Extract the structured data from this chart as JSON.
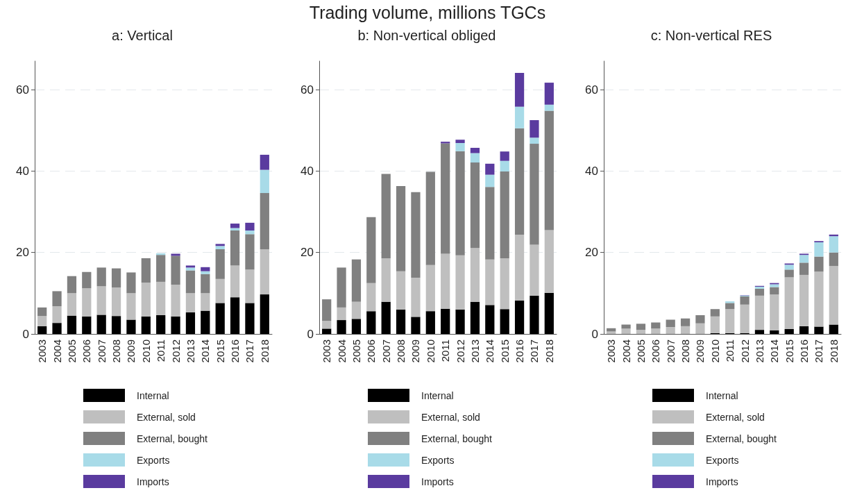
{
  "chart_data": [
    {
      "type": "bar",
      "title": "a: Vertical",
      "annotations": [
        "Trading volume, millions TGCs"
      ],
      "stacked": true,
      "grid": "y",
      "legend": "bottom",
      "ylim": [
        0,
        67
      ],
      "yticks": [
        0,
        20,
        40,
        60
      ],
      "categories": [
        "2003",
        "2004",
        "2005",
        "2006",
        "2007",
        "2008",
        "2009",
        "2010",
        "2011",
        "2012",
        "2013",
        "2014",
        "2015",
        "2016",
        "2017",
        "2018"
      ],
      "series": [
        {
          "name": "Internal",
          "color": "#000000",
          "values": [
            1.9,
            2.7,
            4.5,
            4.3,
            4.7,
            4.4,
            3.5,
            4.3,
            4.6,
            4.3,
            5.3,
            5.7,
            7.6,
            9.0,
            7.6,
            9.7
          ]
        },
        {
          "name": "External, sold",
          "color": "#bfbfbf",
          "values": [
            2.5,
            4.1,
            5.5,
            6.9,
            7.0,
            7.0,
            6.5,
            8.3,
            8.2,
            7.8,
            4.7,
            4.3,
            5.9,
            7.8,
            8.2,
            11.1
          ]
        },
        {
          "name": "External, bought",
          "color": "#808080",
          "values": [
            2.1,
            3.7,
            4.2,
            4.0,
            4.6,
            4.7,
            5.1,
            6.0,
            6.6,
            7.1,
            5.6,
            4.7,
            7.3,
            8.6,
            8.7,
            13.8
          ]
        },
        {
          "name": "Exports",
          "color": "#a8dbe8",
          "values": [
            0,
            0,
            0,
            0,
            0,
            0,
            0,
            0,
            0.4,
            null,
            0.7,
            0.7,
            0.8,
            0.6,
            0.9,
            5.7
          ]
        },
        {
          "name": "Imports",
          "color": "#5a3b9f",
          "values": [
            0,
            0,
            0,
            0,
            0,
            0,
            0,
            0,
            0,
            0.5,
            0.5,
            1.0,
            0.5,
            1.1,
            1.9,
            3.7
          ]
        }
      ]
    },
    {
      "type": "bar",
      "title": "b: Non-vertical obliged",
      "stacked": true,
      "grid": "y",
      "legend": "bottom",
      "ylim": [
        0,
        67
      ],
      "yticks": [
        0,
        20,
        40,
        60
      ],
      "categories": [
        "2003",
        "2004",
        "2005",
        "2006",
        "2007",
        "2008",
        "2009",
        "2010",
        "2011",
        "2012",
        "2013",
        "2014",
        "2015",
        "2016",
        "2017",
        "2018"
      ],
      "series": [
        {
          "name": "Internal",
          "color": "#000000",
          "values": [
            1.3,
            3.4,
            3.7,
            5.6,
            7.9,
            6.0,
            4.2,
            5.6,
            6.2,
            6.0,
            7.9,
            7.1,
            6.1,
            8.2,
            9.4,
            10.1
          ]
        },
        {
          "name": "External, sold",
          "color": "#bfbfbf",
          "values": [
            1.9,
            3.1,
            4.2,
            6.9,
            10.7,
            9.4,
            9.6,
            11.3,
            13.5,
            13.3,
            13.2,
            11.2,
            12.5,
            16.2,
            12.5,
            15.4
          ]
        },
        {
          "name": "External, bought",
          "color": "#808080",
          "values": [
            5.3,
            9.8,
            10.4,
            16.2,
            20.7,
            20.9,
            21.0,
            22.9,
            27.1,
            25.6,
            21.0,
            17.8,
            21.3,
            26.1,
            24.8,
            29.3
          ]
        },
        {
          "name": "Exports",
          "color": "#a8dbe8",
          "values": [
            0,
            0,
            0,
            0,
            0,
            0,
            0,
            0,
            0,
            2.0,
            2.3,
            3.0,
            2.6,
            5.3,
            1.5,
            1.5
          ]
        },
        {
          "name": "Imports",
          "color": "#5a3b9f",
          "values": [
            0,
            0,
            0,
            0,
            0,
            0,
            0,
            0,
            0.4,
            0.8,
            1.3,
            2.7,
            2.3,
            8.3,
            4.3,
            5.4
          ]
        }
      ]
    },
    {
      "type": "bar",
      "title": "c: Non-vertical RES",
      "stacked": true,
      "grid": "y",
      "legend": "bottom",
      "ylim": [
        0,
        67
      ],
      "yticks": [
        0,
        20,
        40,
        60
      ],
      "categories": [
        "2003",
        "2004",
        "2005",
        "2006",
        "2007",
        "2008",
        "2009",
        "2010",
        "2011",
        "2012",
        "2013",
        "2014",
        "2015",
        "2016",
        "2017",
        "2018"
      ],
      "series": [
        {
          "name": "Internal",
          "color": "#000000",
          "values": [
            0,
            0,
            0,
            0,
            0,
            0,
            0,
            0.2,
            0.2,
            0.2,
            1.0,
            0.9,
            1.2,
            1.9,
            1.8,
            2.3
          ]
        },
        {
          "name": "External, sold",
          "color": "#bfbfbf",
          "values": [
            0.6,
            1.3,
            1.0,
            1.3,
            1.7,
            1.9,
            2.6,
            4.1,
            5.9,
            7.0,
            8.4,
            8.8,
            12.7,
            12.6,
            13.5,
            14.4
          ]
        },
        {
          "name": "External, bought",
          "color": "#808080",
          "values": [
            0.8,
            1.0,
            1.5,
            1.5,
            1.8,
            1.9,
            2.0,
            1.8,
            1.5,
            2.0,
            1.7,
            1.8,
            1.9,
            3.0,
            3.7,
            3.3
          ]
        },
        {
          "name": "Exports",
          "color": "#a8dbe8",
          "values": [
            0,
            0,
            0,
            0,
            0,
            0,
            0,
            0,
            0.4,
            0.2,
            0.5,
            0.7,
            1.2,
            1.9,
            3.5,
            4.0
          ]
        },
        {
          "name": "Imports",
          "color": "#5a3b9f",
          "values": [
            0,
            0,
            0,
            0,
            0,
            0,
            0,
            0,
            0,
            0.1,
            0.2,
            0.3,
            0.3,
            0.3,
            0.3,
            0.4
          ]
        }
      ]
    }
  ]
}
